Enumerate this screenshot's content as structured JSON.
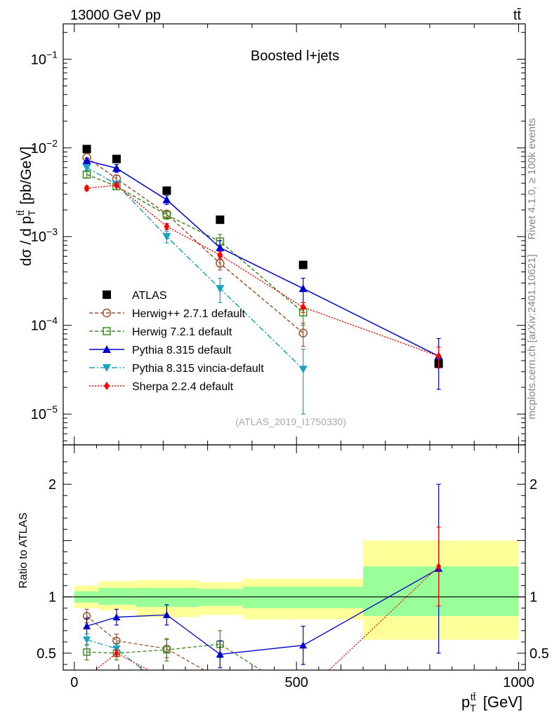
{
  "header": {
    "left": "13000 GeV pp",
    "right": "tt̄"
  },
  "side_labels": {
    "rivet": "Rivet 4.1.0, ≥ 100k events",
    "mcplots": "mcplots.cern.ch [arXiv:2401.10621]"
  },
  "chart_data": [
    {
      "type": "line",
      "title": "Boosted l+jets",
      "annotation": "(ATLAS_2019_I1750330)",
      "ylabel": "dσ / d p_T^{tt̄} [pb/GeV]",
      "yscale": "log",
      "ylim": [
        4.5e-06,
        0.25
      ],
      "xlim": [
        -25,
        1015
      ],
      "yticks": [
        {
          "value": 1e-05,
          "base": "10",
          "exp": "−5"
        },
        {
          "value": 0.0001,
          "base": "10",
          "exp": "−4"
        },
        {
          "value": 0.001,
          "base": "10",
          "exp": "−3"
        },
        {
          "value": 0.01,
          "base": "10",
          "exp": "−2"
        },
        {
          "value": 0.1,
          "base": "10",
          "exp": "−1"
        }
      ],
      "series": [
        {
          "name": "ATLAS",
          "color": "#000000",
          "marker": "square",
          "line": "none",
          "x": [
            28,
            95,
            208,
            328,
            515,
            820
          ],
          "y": [
            0.0097,
            0.0075,
            0.0033,
            0.00155,
            0.00048,
            3.7e-05
          ],
          "err": [
            0,
            0,
            0,
            0,
            0,
            0
          ]
        },
        {
          "name": "Herwig++ 2.7.1 default",
          "color": "#a0522d",
          "marker": "circle-open",
          "line": "dashed",
          "x": [
            28,
            95,
            208,
            328,
            515
          ],
          "y": [
            0.0078,
            0.0045,
            0.0018,
            0.0005,
            8.2e-05
          ],
          "err": [
            0,
            0.0004,
            0.00015,
            8e-05,
            2.4e-05
          ]
        },
        {
          "name": "Herwig 7.2.1 default",
          "color": "#3d8c1d",
          "marker": "square-open",
          "line": "dashed",
          "x": [
            28,
            95,
            208,
            328,
            515
          ],
          "y": [
            0.005,
            0.0037,
            0.00175,
            0.00088,
            0.00014
          ],
          "err": [
            0.0004,
            0.0003,
            0.00018,
            0.00018,
            4e-05
          ]
        },
        {
          "name": "Pythia 8.315 default",
          "color": "#0000cd",
          "marker": "triangle-up",
          "line": "solid",
          "x": [
            28,
            95,
            208,
            328,
            515,
            820
          ],
          "y": [
            0.0072,
            0.0059,
            0.0026,
            0.00075,
            0.00026,
            4.5e-05
          ],
          "err": [
            0.0005,
            0.0006,
            0.0003,
            0.00015,
            8e-05,
            2.6e-05
          ]
        },
        {
          "name": "Pythia 8.315 vincia-default",
          "color": "#17a1c3",
          "marker": "triangle-down",
          "line": "dashdot",
          "x": [
            28,
            95,
            208,
            328,
            515
          ],
          "y": [
            0.006,
            0.0039,
            0.001,
            0.00026,
            3.2e-05
          ],
          "err": [
            0.0004,
            0.0003,
            0.00015,
            8e-05,
            2.2e-05
          ]
        },
        {
          "name": "Sherpa 2.2.4 default",
          "color": "#ff0000",
          "marker": "diamond",
          "line": "dotted",
          "x": [
            28,
            95,
            208,
            328,
            515,
            820
          ],
          "y": [
            0.0035,
            0.0038,
            0.0013,
            0.00062,
            0.00016,
            4.5e-05
          ],
          "err": [
            0.0002,
            0.0002,
            0.0001,
            6e-05,
            2e-05,
            1.2e-05
          ]
        }
      ]
    },
    {
      "type": "line",
      "ylabel": "Ratio to ATLAS",
      "xlabel": "p_T^{tt̄} [GeV]",
      "xlim": [
        -25,
        1015
      ],
      "ylim": [
        0.35,
        2.35
      ],
      "xticks": [
        0,
        500,
        1000
      ],
      "yticks": [
        0.5,
        1,
        2
      ],
      "bands": [
        {
          "x0": 0,
          "x1": 55,
          "yellow": [
            0.9,
            1.1
          ],
          "green": [
            0.95,
            1.05
          ]
        },
        {
          "x0": 55,
          "x1": 140,
          "yellow": [
            0.88,
            1.14
          ],
          "green": [
            0.93,
            1.08
          ]
        },
        {
          "x0": 140,
          "x1": 280,
          "yellow": [
            0.82,
            1.15
          ],
          "green": [
            0.91,
            1.08
          ]
        },
        {
          "x0": 280,
          "x1": 380,
          "yellow": [
            0.84,
            1.13
          ],
          "green": [
            0.92,
            1.07
          ]
        },
        {
          "x0": 380,
          "x1": 650,
          "yellow": [
            0.8,
            1.16
          ],
          "green": [
            0.9,
            1.09
          ]
        },
        {
          "x0": 650,
          "x1": 1000,
          "yellow": [
            0.62,
            1.5
          ],
          "green": [
            0.83,
            1.27
          ]
        }
      ],
      "series": [
        {
          "name": "Herwig++ 2.7.1 default",
          "x": [
            28,
            95,
            208
          ],
          "y": [
            0.83,
            0.61,
            0.54
          ],
          "err": [
            0.06,
            0.06,
            0.08
          ],
          "x_end": 292,
          "y_end": 0.35
        },
        {
          "name": "Herwig 7.2.1 default",
          "x": [
            28,
            95,
            208,
            328
          ],
          "y": [
            0.51,
            0.5,
            0.53,
            0.58
          ],
          "err": [
            0.07,
            0.06,
            0.1,
            0.12
          ],
          "x_end": 420,
          "y_end": 0.35
        },
        {
          "name": "Pythia 8.315 default",
          "x": [
            28,
            95,
            208,
            328,
            515,
            820
          ],
          "y": [
            0.74,
            0.82,
            0.84,
            0.49,
            0.57,
            1.25
          ],
          "err": [
            0.07,
            0.07,
            0.09,
            0.12,
            0.17,
            0.75
          ]
        },
        {
          "name": "Pythia 8.315 vincia-default",
          "x": [
            28,
            95
          ],
          "y": [
            0.62,
            0.54
          ],
          "err": [
            0.05,
            0.05
          ],
          "x_end": 155,
          "y_end": 0.35
        },
        {
          "name": "Sherpa 2.2.4 default",
          "x": [
            95,
            820
          ],
          "y": [
            0.5,
            1.27
          ],
          "err": [
            0.03,
            0.35
          ],
          "x_start": 0,
          "y_start": 0.35,
          "x_mid": 560,
          "y_mid": 0.35
        }
      ]
    }
  ]
}
